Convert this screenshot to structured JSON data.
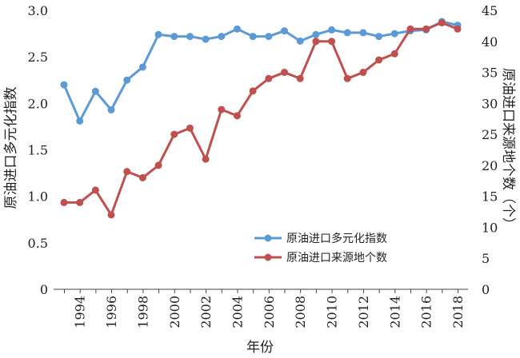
{
  "chart_data": {
    "type": "line",
    "xlabel": "年份",
    "ylabel_left": "原油进口多元化指数",
    "ylabel_right": "原油进口来源地个数（个）",
    "x": [
      1993,
      1994,
      1995,
      1996,
      1997,
      1998,
      1999,
      2000,
      2001,
      2002,
      2003,
      2004,
      2005,
      2006,
      2007,
      2008,
      2009,
      2010,
      2011,
      2012,
      2013,
      2014,
      2015,
      2016,
      2017,
      2018
    ],
    "x_ticks": [
      "1994",
      "1996",
      "1998",
      "2000",
      "2002",
      "2004",
      "2006",
      "2008",
      "2010",
      "2012",
      "2014",
      "2016",
      "2018"
    ],
    "ylim_left": [
      0,
      3.0
    ],
    "yticks_left": [
      "0",
      "0.5",
      "1.0",
      "1.5",
      "2.0",
      "2.5",
      "3.0"
    ],
    "ylim_right": [
      0,
      45
    ],
    "yticks_right": [
      "0",
      "5",
      "10",
      "15",
      "20",
      "25",
      "30",
      "35",
      "40",
      "45"
    ],
    "grid": false,
    "legend_position": "lower-right",
    "series": [
      {
        "name": "原油进口多元化指数",
        "axis": "left",
        "color": "#5b9bd5",
        "values": [
          2.2,
          1.81,
          2.13,
          1.93,
          2.25,
          2.39,
          2.74,
          2.72,
          2.72,
          2.69,
          2.72,
          2.8,
          2.72,
          2.72,
          2.78,
          2.67,
          2.74,
          2.79,
          2.76,
          2.76,
          2.72,
          2.75,
          2.78,
          2.79,
          2.88,
          2.84
        ]
      },
      {
        "name": "原油进口来源地个数",
        "axis": "right",
        "color": "#c0504d",
        "values": [
          14,
          14,
          16,
          12,
          19,
          18,
          20,
          25,
          26,
          21,
          29,
          28,
          32,
          34,
          35,
          34,
          40,
          40,
          34,
          35,
          37,
          38,
          42,
          42,
          43,
          42
        ]
      }
    ]
  }
}
